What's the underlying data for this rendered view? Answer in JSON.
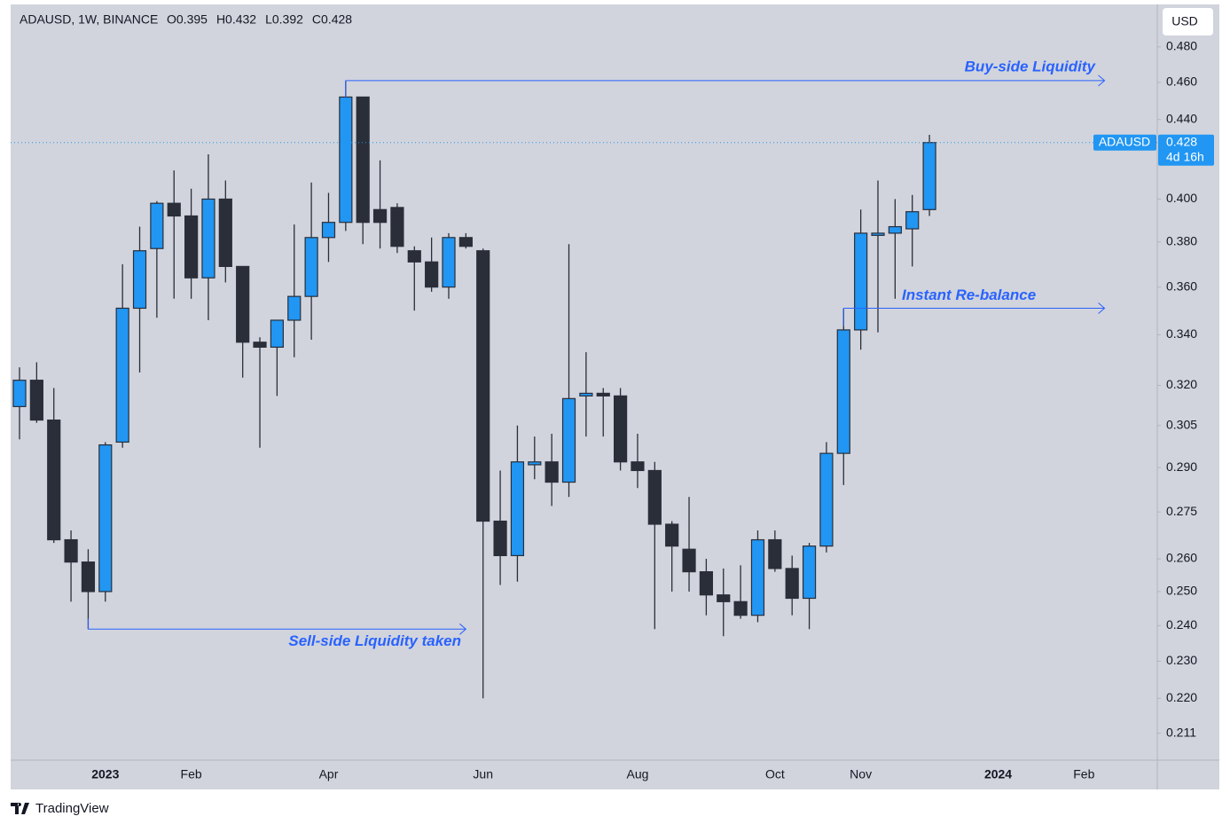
{
  "chart_data": {
    "type": "candlestick",
    "header": {
      "symbol": "ADAUSD, 1W, BINANCE",
      "ohlc": [
        "O0.395",
        "H0.432",
        "L0.392",
        "C0.428"
      ]
    },
    "currency": "USD",
    "brand": "TradingView",
    "up_color": "#2196f3",
    "down_color": "#2a2e39",
    "open": [
      0.312,
      0.322,
      0.307,
      0.266,
      0.259,
      0.25,
      0.299,
      0.351,
      0.377,
      0.398,
      0.392,
      0.364,
      0.4,
      0.369,
      0.337,
      0.335,
      0.346,
      0.356,
      0.382,
      0.389,
      0.452,
      0.395,
      0.396,
      0.376,
      0.371,
      0.36,
      0.382,
      0.376,
      0.272,
      0.261,
      0.291,
      0.292,
      0.285,
      0.316,
      0.317,
      0.316,
      0.292,
      0.289,
      0.271,
      0.263,
      0.256,
      0.249,
      0.247,
      0.243,
      0.266,
      0.257,
      0.248,
      0.264,
      0.295,
      0.342,
      0.383,
      0.384,
      0.386,
      0.395
    ],
    "high": [
      0.327,
      0.329,
      0.319,
      0.269,
      0.263,
      0.299,
      0.37,
      0.387,
      0.399,
      0.414,
      0.405,
      0.422,
      0.409,
      0.369,
      0.339,
      0.346,
      0.388,
      0.408,
      0.403,
      0.461,
      0.452,
      0.419,
      0.398,
      0.378,
      0.382,
      0.384,
      0.384,
      0.377,
      0.289,
      0.305,
      0.301,
      0.302,
      0.379,
      0.333,
      0.319,
      0.319,
      0.302,
      0.292,
      0.272,
      0.28,
      0.26,
      0.257,
      0.258,
      0.269,
      0.269,
      0.261,
      0.265,
      0.299,
      0.351,
      0.395,
      0.409,
      0.4,
      0.402,
      0.432
    ],
    "low": [
      0.3,
      0.306,
      0.265,
      0.247,
      0.239,
      0.247,
      0.297,
      0.325,
      0.347,
      0.355,
      0.355,
      0.346,
      0.362,
      0.323,
      0.297,
      0.316,
      0.331,
      0.338,
      0.371,
      0.385,
      0.379,
      0.377,
      0.375,
      0.35,
      0.358,
      0.355,
      0.377,
      0.22,
      0.252,
      0.253,
      0.286,
      0.277,
      0.28,
      0.301,
      0.301,
      0.289,
      0.283,
      0.239,
      0.25,
      0.25,
      0.243,
      0.237,
      0.242,
      0.241,
      0.256,
      0.243,
      0.239,
      0.262,
      0.284,
      0.334,
      0.341,
      0.355,
      0.369,
      0.392
    ],
    "close": [
      0.322,
      0.307,
      0.266,
      0.259,
      0.25,
      0.298,
      0.351,
      0.376,
      0.398,
      0.392,
      0.364,
      0.4,
      0.369,
      0.337,
      0.335,
      0.346,
      0.356,
      0.382,
      0.389,
      0.452,
      0.389,
      0.389,
      0.378,
      0.371,
      0.36,
      0.382,
      0.378,
      0.272,
      0.261,
      0.292,
      0.292,
      0.285,
      0.315,
      0.317,
      0.316,
      0.292,
      0.289,
      0.271,
      0.264,
      0.256,
      0.249,
      0.247,
      0.243,
      0.266,
      0.257,
      0.248,
      0.264,
      0.295,
      0.342,
      0.384,
      0.384,
      0.387,
      0.394,
      0.428
    ],
    "x_labels": [
      "2023",
      "Feb",
      "Apr",
      "Jun",
      "Aug",
      "Oct",
      "Nov",
      "2024",
      "Feb"
    ],
    "ylim": [
      0.2043,
      0.505
    ],
    "log_scale": true,
    "yticks": [
      {
        "value": 0.48,
        "label": "0.480"
      },
      {
        "value": 0.46,
        "label": "0.460"
      },
      {
        "value": 0.44,
        "label": "0.440"
      },
      {
        "value": 0.4,
        "label": "0.400"
      },
      {
        "value": 0.38,
        "label": "0.380"
      },
      {
        "value": 0.36,
        "label": "0.360"
      },
      {
        "value": 0.34,
        "label": "0.340"
      },
      {
        "value": 0.32,
        "label": "0.320"
      },
      0.305,
      {
        "value": 0.29,
        "label": "0.290"
      },
      0.275,
      {
        "value": 0.26,
        "label": "0.260"
      },
      {
        "value": 0.25,
        "label": "0.250"
      },
      {
        "value": 0.24,
        "label": "0.240"
      },
      {
        "value": 0.23,
        "label": "0.230"
      },
      {
        "value": 0.22,
        "label": "0.220"
      },
      0.211
    ],
    "price_label": {
      "symbol": "ADAUSD",
      "value": 0.428,
      "countdown": "4d 16h"
    },
    "annotations": [
      {
        "text": "Buy-side Liquidity",
        "value": 0.461
      },
      {
        "text": "Sell-side Liquidity taken",
        "value": 0.239
      },
      {
        "text": "Instant Re-balance",
        "value": 0.351
      }
    ]
  }
}
